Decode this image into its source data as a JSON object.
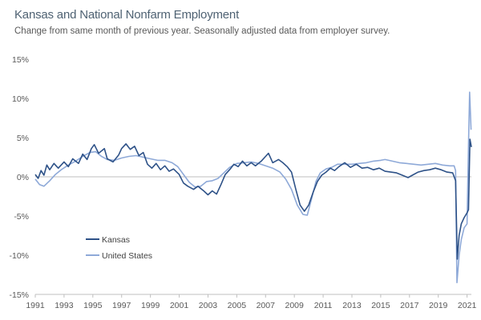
{
  "chart_data": {
    "type": "line",
    "title": "Kansas and National Nonfarm Employment",
    "subtitle": "Change from same month of previous year. Seasonally adjusted data from employer survey.",
    "xlabel": "",
    "ylabel": "",
    "xlim": [
      1991,
      2021.3
    ],
    "ylim": [
      -15,
      15
    ],
    "x_ticks": [
      "1991",
      "1993",
      "1995",
      "1997",
      "1999",
      "2001",
      "2003",
      "2005",
      "2007",
      "2009",
      "2011",
      "2013",
      "2015",
      "2017",
      "2019",
      "2021"
    ],
    "y_ticks": [
      "15%",
      "10%",
      "5%",
      "0%",
      "-5%",
      "-10%",
      "-15%"
    ],
    "y_tick_values": [
      15,
      10,
      5,
      0,
      -5,
      -10,
      -15
    ],
    "grid": false,
    "legend_position": "bottom-left",
    "series": [
      {
        "name": "Kansas",
        "color": "#2e5288",
        "points": [
          [
            1991.0,
            0.3
          ],
          [
            1991.2,
            -0.2
          ],
          [
            1991.4,
            0.8
          ],
          [
            1991.6,
            0.2
          ],
          [
            1991.8,
            1.5
          ],
          [
            1992.0,
            0.9
          ],
          [
            1992.3,
            1.7
          ],
          [
            1992.6,
            1.1
          ],
          [
            1993.0,
            1.9
          ],
          [
            1993.3,
            1.3
          ],
          [
            1993.6,
            2.3
          ],
          [
            1994.0,
            1.7
          ],
          [
            1994.3,
            2.9
          ],
          [
            1994.6,
            2.2
          ],
          [
            1994.9,
            3.6
          ],
          [
            1995.1,
            4.1
          ],
          [
            1995.4,
            3.0
          ],
          [
            1995.8,
            3.6
          ],
          [
            1996.0,
            2.3
          ],
          [
            1996.4,
            1.9
          ],
          [
            1996.8,
            2.8
          ],
          [
            1997.0,
            3.6
          ],
          [
            1997.3,
            4.2
          ],
          [
            1997.6,
            3.5
          ],
          [
            1997.9,
            3.9
          ],
          [
            1998.2,
            2.7
          ],
          [
            1998.5,
            3.1
          ],
          [
            1998.8,
            1.6
          ],
          [
            1999.1,
            1.1
          ],
          [
            1999.4,
            1.7
          ],
          [
            1999.7,
            0.9
          ],
          [
            2000.0,
            1.4
          ],
          [
            2000.3,
            0.7
          ],
          [
            2000.6,
            1.0
          ],
          [
            2001.0,
            0.3
          ],
          [
            2001.3,
            -0.8
          ],
          [
            2001.6,
            -1.2
          ],
          [
            2002.0,
            -1.6
          ],
          [
            2002.3,
            -1.2
          ],
          [
            2002.7,
            -1.8
          ],
          [
            2003.0,
            -2.3
          ],
          [
            2003.3,
            -1.8
          ],
          [
            2003.6,
            -2.2
          ],
          [
            2003.9,
            -1.0
          ],
          [
            2004.2,
            0.3
          ],
          [
            2004.5,
            0.9
          ],
          [
            2004.8,
            1.6
          ],
          [
            2005.1,
            1.3
          ],
          [
            2005.4,
            2.0
          ],
          [
            2005.7,
            1.4
          ],
          [
            2006.0,
            1.8
          ],
          [
            2006.3,
            1.4
          ],
          [
            2006.7,
            2.0
          ],
          [
            2007.0,
            2.6
          ],
          [
            2007.2,
            3.0
          ],
          [
            2007.5,
            1.8
          ],
          [
            2007.9,
            2.2
          ],
          [
            2008.2,
            1.8
          ],
          [
            2008.5,
            1.3
          ],
          [
            2008.8,
            0.6
          ],
          [
            2009.1,
            -1.6
          ],
          [
            2009.4,
            -3.6
          ],
          [
            2009.7,
            -4.4
          ],
          [
            2010.0,
            -3.6
          ],
          [
            2010.3,
            -2.0
          ],
          [
            2010.6,
            -0.6
          ],
          [
            2010.9,
            0.2
          ],
          [
            2011.2,
            0.6
          ],
          [
            2011.5,
            1.1
          ],
          [
            2011.8,
            0.8
          ],
          [
            2012.1,
            1.3
          ],
          [
            2012.5,
            1.8
          ],
          [
            2012.9,
            1.2
          ],
          [
            2013.3,
            1.6
          ],
          [
            2013.7,
            1.1
          ],
          [
            2014.1,
            1.2
          ],
          [
            2014.5,
            0.9
          ],
          [
            2014.9,
            1.1
          ],
          [
            2015.3,
            0.7
          ],
          [
            2015.7,
            0.6
          ],
          [
            2016.1,
            0.5
          ],
          [
            2016.5,
            0.2
          ],
          [
            2016.9,
            -0.1
          ],
          [
            2017.2,
            0.2
          ],
          [
            2017.6,
            0.6
          ],
          [
            2018.0,
            0.8
          ],
          [
            2018.4,
            0.9
          ],
          [
            2018.8,
            1.1
          ],
          [
            2019.2,
            0.9
          ],
          [
            2019.6,
            0.6
          ],
          [
            2020.0,
            0.5
          ],
          [
            2020.2,
            -0.5
          ],
          [
            2020.32,
            -10.5
          ],
          [
            2020.45,
            -7.5
          ],
          [
            2020.6,
            -6.0
          ],
          [
            2020.8,
            -5.2
          ],
          [
            2021.0,
            -4.6
          ],
          [
            2021.1,
            -4.2
          ],
          [
            2021.2,
            4.8
          ],
          [
            2021.3,
            3.8
          ]
        ]
      },
      {
        "name": "United States",
        "color": "#8ea9d8",
        "points": [
          [
            1991.0,
            -0.3
          ],
          [
            1991.3,
            -1.0
          ],
          [
            1991.6,
            -1.2
          ],
          [
            1992.0,
            -0.5
          ],
          [
            1992.4,
            0.3
          ],
          [
            1992.8,
            0.9
          ],
          [
            1993.3,
            1.5
          ],
          [
            1993.8,
            2.0
          ],
          [
            1994.3,
            2.6
          ],
          [
            1994.8,
            3.1
          ],
          [
            1995.2,
            3.2
          ],
          [
            1995.6,
            2.6
          ],
          [
            1996.0,
            2.2
          ],
          [
            1996.5,
            2.1
          ],
          [
            1997.0,
            2.4
          ],
          [
            1997.5,
            2.6
          ],
          [
            1998.0,
            2.7
          ],
          [
            1998.5,
            2.5
          ],
          [
            1999.0,
            2.3
          ],
          [
            1999.5,
            2.1
          ],
          [
            2000.0,
            2.1
          ],
          [
            2000.5,
            1.8
          ],
          [
            2000.9,
            1.3
          ],
          [
            2001.3,
            0.3
          ],
          [
            2001.7,
            -0.7
          ],
          [
            2002.1,
            -1.3
          ],
          [
            2002.5,
            -1.2
          ],
          [
            2002.9,
            -0.6
          ],
          [
            2003.3,
            -0.5
          ],
          [
            2003.7,
            -0.2
          ],
          [
            2004.1,
            0.5
          ],
          [
            2004.5,
            1.2
          ],
          [
            2005.0,
            1.7
          ],
          [
            2005.5,
            1.8
          ],
          [
            2006.0,
            1.9
          ],
          [
            2006.5,
            1.7
          ],
          [
            2007.0,
            1.4
          ],
          [
            2007.5,
            1.1
          ],
          [
            2008.0,
            0.6
          ],
          [
            2008.4,
            -0.3
          ],
          [
            2008.8,
            -1.6
          ],
          [
            2009.2,
            -3.6
          ],
          [
            2009.6,
            -4.8
          ],
          [
            2009.9,
            -4.9
          ],
          [
            2010.2,
            -2.8
          ],
          [
            2010.5,
            -0.6
          ],
          [
            2010.8,
            0.5
          ],
          [
            2011.2,
            1.0
          ],
          [
            2011.6,
            1.2
          ],
          [
            2012.0,
            1.6
          ],
          [
            2012.5,
            1.6
          ],
          [
            2013.0,
            1.6
          ],
          [
            2013.5,
            1.7
          ],
          [
            2014.0,
            1.8
          ],
          [
            2014.5,
            2.0
          ],
          [
            2015.0,
            2.1
          ],
          [
            2015.3,
            2.2
          ],
          [
            2015.8,
            2.0
          ],
          [
            2016.3,
            1.8
          ],
          [
            2016.8,
            1.7
          ],
          [
            2017.3,
            1.6
          ],
          [
            2017.8,
            1.5
          ],
          [
            2018.3,
            1.6
          ],
          [
            2018.8,
            1.7
          ],
          [
            2019.3,
            1.5
          ],
          [
            2019.8,
            1.4
          ],
          [
            2020.1,
            1.4
          ],
          [
            2020.2,
            0.8
          ],
          [
            2020.3,
            -13.5
          ],
          [
            2020.45,
            -10.0
          ],
          [
            2020.6,
            -8.0
          ],
          [
            2020.8,
            -6.5
          ],
          [
            2021.0,
            -6.0
          ],
          [
            2021.1,
            4.0
          ],
          [
            2021.18,
            10.8
          ],
          [
            2021.28,
            6.0
          ]
        ]
      }
    ]
  }
}
